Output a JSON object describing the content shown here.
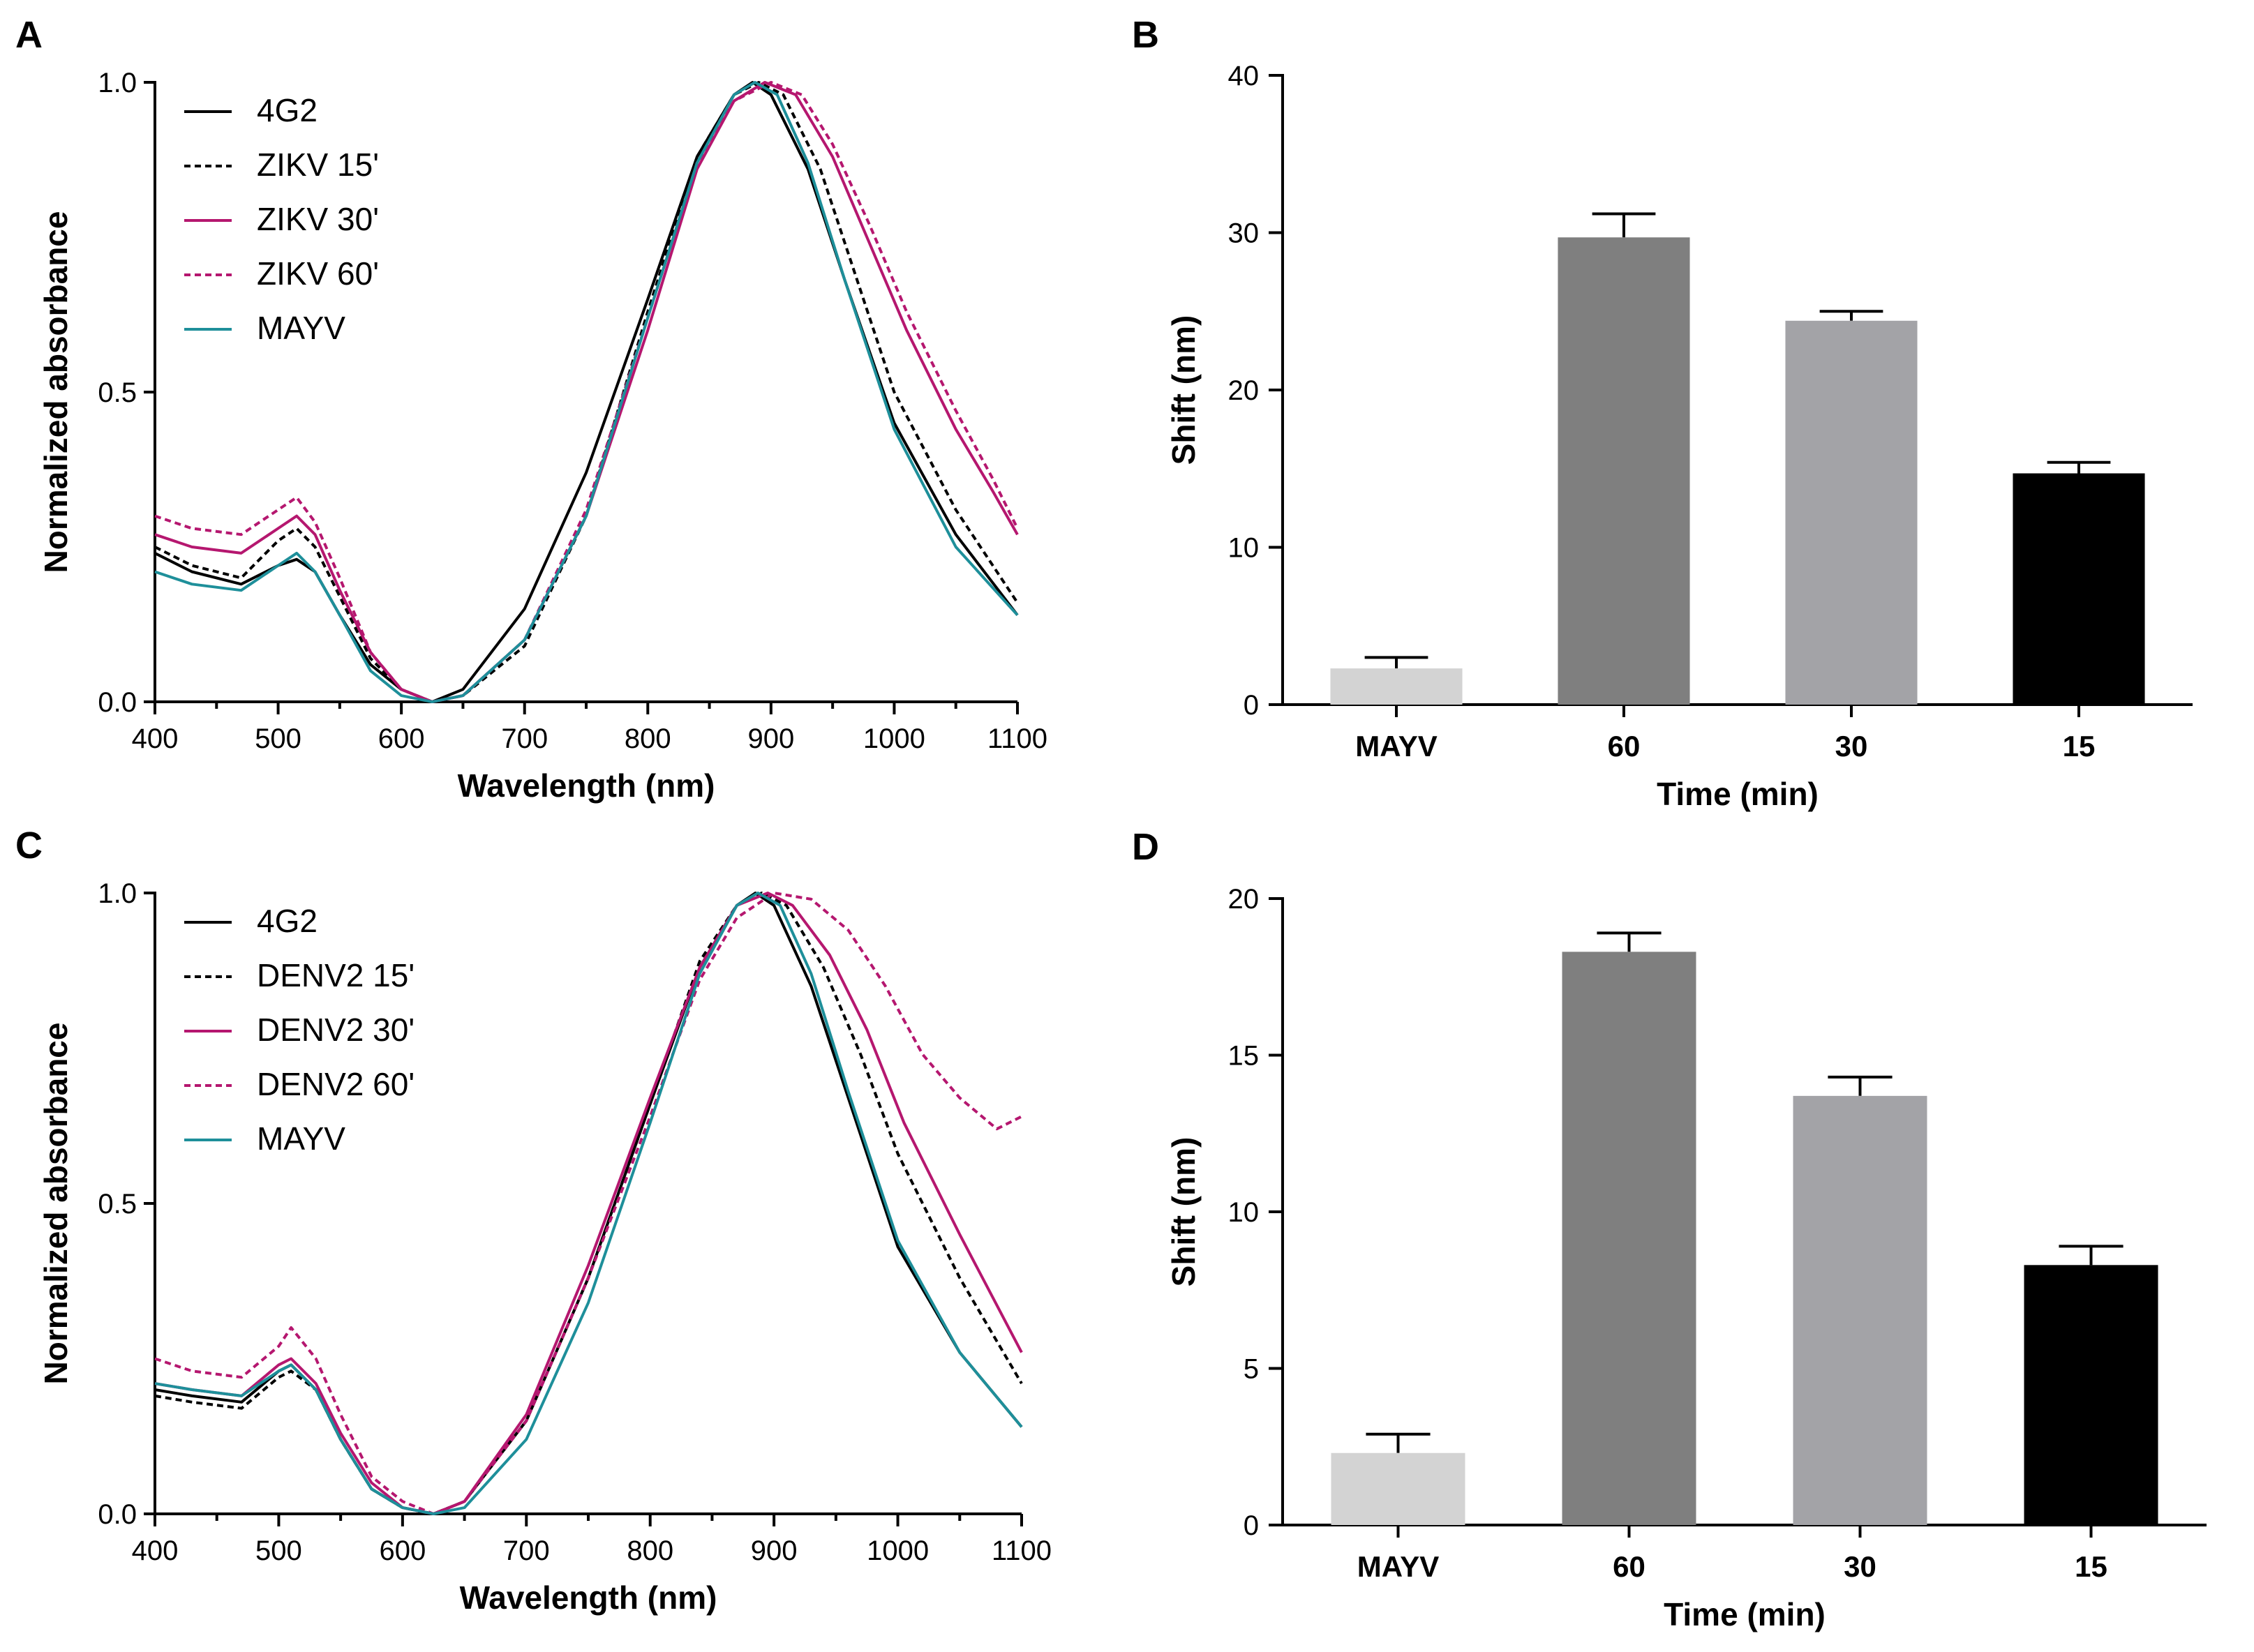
{
  "colors": {
    "black": "#000000",
    "magenta": "#b5176f",
    "teal": "#1e8f9a"
  },
  "panels": {
    "A": "A",
    "B": "B",
    "C": "C",
    "D": "D"
  },
  "chart_data": [
    {
      "id": "A",
      "type": "line",
      "title": "",
      "xlabel": "Wavelength (nm)",
      "ylabel": "Normalized absorbance",
      "xlim": [
        400,
        1100
      ],
      "ylim": [
        0,
        1.0
      ],
      "xticks": [
        400,
        500,
        600,
        700,
        800,
        900,
        1000,
        1100
      ],
      "yticks": [
        0.0,
        0.5,
        1.0
      ],
      "ytick_labels": [
        "0.0",
        "0.5",
        "1.0"
      ],
      "legend_position": "top-left",
      "series": [
        {
          "name": "4G2",
          "style": "solid",
          "color": "#000000",
          "x": [
            400,
            430,
            470,
            500,
            515,
            530,
            550,
            575,
            600,
            625,
            650,
            700,
            750,
            800,
            840,
            870,
            885,
            900,
            930,
            960,
            1000,
            1050,
            1100
          ],
          "y": [
            0.24,
            0.21,
            0.19,
            0.22,
            0.23,
            0.21,
            0.14,
            0.06,
            0.02,
            0.0,
            0.02,
            0.15,
            0.37,
            0.65,
            0.88,
            0.98,
            1.0,
            0.98,
            0.86,
            0.68,
            0.45,
            0.27,
            0.14
          ]
        },
        {
          "name": "ZIKV 15'",
          "style": "dashed",
          "color": "#000000",
          "x": [
            400,
            430,
            470,
            500,
            515,
            530,
            550,
            575,
            600,
            625,
            650,
            700,
            750,
            800,
            840,
            870,
            890,
            910,
            940,
            970,
            1000,
            1050,
            1100
          ],
          "y": [
            0.25,
            0.22,
            0.2,
            0.26,
            0.28,
            0.25,
            0.17,
            0.07,
            0.02,
            0.0,
            0.01,
            0.09,
            0.3,
            0.63,
            0.88,
            0.98,
            1.0,
            0.98,
            0.86,
            0.68,
            0.5,
            0.31,
            0.16
          ]
        },
        {
          "name": "ZIKV  30'",
          "style": "solid",
          "color": "#b5176f",
          "x": [
            400,
            430,
            470,
            500,
            515,
            530,
            550,
            575,
            600,
            625,
            650,
            700,
            750,
            800,
            840,
            870,
            895,
            920,
            950,
            980,
            1010,
            1050,
            1080,
            1100
          ],
          "y": [
            0.27,
            0.25,
            0.24,
            0.28,
            0.3,
            0.27,
            0.18,
            0.08,
            0.02,
            0.0,
            0.01,
            0.1,
            0.3,
            0.6,
            0.86,
            0.97,
            1.0,
            0.98,
            0.88,
            0.74,
            0.6,
            0.44,
            0.34,
            0.27
          ]
        },
        {
          "name": "ZIKV  60'",
          "style": "dashed",
          "color": "#b5176f",
          "x": [
            400,
            430,
            470,
            500,
            515,
            530,
            550,
            575,
            600,
            625,
            650,
            700,
            750,
            800,
            840,
            870,
            900,
            925,
            950,
            980,
            1010,
            1050,
            1080,
            1100
          ],
          "y": [
            0.3,
            0.28,
            0.27,
            0.31,
            0.33,
            0.29,
            0.2,
            0.08,
            0.02,
            0.0,
            0.01,
            0.1,
            0.31,
            0.62,
            0.87,
            0.97,
            1.0,
            0.98,
            0.9,
            0.77,
            0.63,
            0.47,
            0.36,
            0.28
          ]
        },
        {
          "name": "MAYV",
          "style": "solid",
          "color": "#1e8f9a",
          "x": [
            400,
            430,
            470,
            500,
            515,
            530,
            550,
            575,
            600,
            625,
            650,
            700,
            750,
            800,
            840,
            870,
            887,
            905,
            930,
            960,
            1000,
            1050,
            1100
          ],
          "y": [
            0.21,
            0.19,
            0.18,
            0.22,
            0.24,
            0.21,
            0.14,
            0.05,
            0.01,
            0.0,
            0.01,
            0.1,
            0.3,
            0.62,
            0.87,
            0.98,
            1.0,
            0.98,
            0.87,
            0.68,
            0.44,
            0.25,
            0.14
          ]
        }
      ]
    },
    {
      "id": "B",
      "type": "bar",
      "title": "",
      "xlabel": "Time (min)",
      "ylabel": "Shift (nm)",
      "ylim": [
        0,
        40
      ],
      "yticks": [
        0,
        10,
        20,
        30,
        40
      ],
      "categories": [
        "MAYV",
        "60",
        "30",
        "15"
      ],
      "values": [
        2.3,
        29.7,
        24.4,
        14.7
      ],
      "errors": [
        0.7,
        1.5,
        0.6,
        0.7
      ],
      "bar_colors": [
        "#d3d3d3",
        "#7f7f7f",
        "#a3a3a7",
        "#000000"
      ]
    },
    {
      "id": "C",
      "type": "line",
      "title": "",
      "xlabel": "Wavelength (nm)",
      "ylabel": "Normalized absorbance",
      "xlim": [
        400,
        1100
      ],
      "ylim": [
        0,
        1.0
      ],
      "xticks": [
        400,
        500,
        600,
        700,
        800,
        900,
        1000,
        1100
      ],
      "yticks": [
        0.0,
        0.5,
        1.0
      ],
      "ytick_labels": [
        "0.0",
        "0.5",
        "1.0"
      ],
      "legend_position": "top-left",
      "series": [
        {
          "name": "4G2",
          "style": "solid",
          "color": "#000000",
          "x": [
            400,
            430,
            470,
            500,
            510,
            530,
            550,
            575,
            600,
            625,
            650,
            700,
            750,
            800,
            840,
            870,
            885,
            900,
            930,
            960,
            1000,
            1050,
            1100
          ],
          "y": [
            0.2,
            0.19,
            0.18,
            0.23,
            0.24,
            0.2,
            0.12,
            0.04,
            0.01,
            0.0,
            0.02,
            0.15,
            0.38,
            0.66,
            0.88,
            0.98,
            1.0,
            0.98,
            0.85,
            0.67,
            0.43,
            0.26,
            0.14
          ]
        },
        {
          "name": "DENV2 15'",
          "style": "dashed",
          "color": "#000000",
          "x": [
            400,
            430,
            470,
            500,
            510,
            530,
            550,
            575,
            600,
            625,
            650,
            700,
            750,
            800,
            840,
            870,
            890,
            910,
            940,
            970,
            1000,
            1050,
            1100
          ],
          "y": [
            0.19,
            0.18,
            0.17,
            0.22,
            0.23,
            0.2,
            0.12,
            0.04,
            0.01,
            0.0,
            0.02,
            0.15,
            0.38,
            0.66,
            0.89,
            0.98,
            1.0,
            0.98,
            0.88,
            0.74,
            0.58,
            0.38,
            0.21
          ]
        },
        {
          "name": "DENV2 30'",
          "style": "solid",
          "color": "#b5176f",
          "x": [
            400,
            430,
            470,
            500,
            510,
            530,
            550,
            575,
            600,
            625,
            650,
            700,
            750,
            800,
            840,
            870,
            895,
            915,
            945,
            975,
            1005,
            1050,
            1100
          ],
          "y": [
            0.21,
            0.2,
            0.19,
            0.24,
            0.25,
            0.21,
            0.13,
            0.05,
            0.01,
            0.0,
            0.02,
            0.16,
            0.4,
            0.67,
            0.88,
            0.98,
            1.0,
            0.98,
            0.9,
            0.78,
            0.63,
            0.45,
            0.26
          ]
        },
        {
          "name": "DENV2 60'",
          "style": "dashed",
          "color": "#b5176f",
          "x": [
            400,
            430,
            470,
            500,
            510,
            530,
            550,
            575,
            600,
            625,
            650,
            700,
            750,
            800,
            840,
            870,
            900,
            930,
            960,
            990,
            1020,
            1050,
            1080,
            1100
          ],
          "y": [
            0.25,
            0.23,
            0.22,
            0.27,
            0.3,
            0.25,
            0.16,
            0.06,
            0.02,
            0.0,
            0.02,
            0.15,
            0.38,
            0.64,
            0.86,
            0.96,
            1.0,
            0.99,
            0.94,
            0.85,
            0.74,
            0.67,
            0.62,
            0.64
          ]
        },
        {
          "name": "MAYV",
          "style": "solid",
          "color": "#1e8f9a",
          "x": [
            400,
            430,
            470,
            500,
            510,
            530,
            550,
            575,
            600,
            625,
            650,
            700,
            750,
            800,
            840,
            870,
            887,
            905,
            930,
            960,
            1000,
            1050,
            1100
          ],
          "y": [
            0.21,
            0.2,
            0.19,
            0.23,
            0.24,
            0.2,
            0.12,
            0.04,
            0.01,
            0.0,
            0.01,
            0.12,
            0.34,
            0.63,
            0.87,
            0.98,
            1.0,
            0.98,
            0.87,
            0.68,
            0.44,
            0.26,
            0.14
          ]
        }
      ]
    },
    {
      "id": "D",
      "type": "bar",
      "title": "",
      "xlabel": "Time (min)",
      "ylabel": "Shift (nm)",
      "ylim": [
        0,
        20
      ],
      "yticks": [
        0,
        5,
        10,
        15,
        20
      ],
      "categories": [
        "MAYV",
        "60",
        "30",
        "15"
      ],
      "values": [
        2.3,
        18.3,
        13.7,
        8.3
      ],
      "errors": [
        0.6,
        0.6,
        0.6,
        0.6
      ],
      "bar_colors": [
        "#d3d3d3",
        "#7f7f7f",
        "#a3a3a7",
        "#000000"
      ]
    }
  ]
}
